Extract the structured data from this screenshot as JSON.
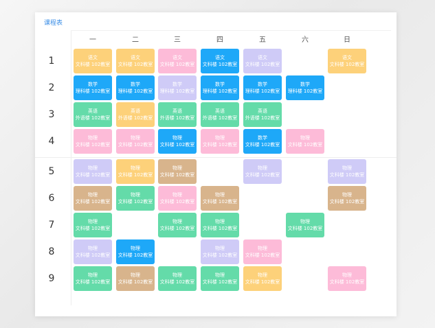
{
  "header": {
    "title": "课程表"
  },
  "days": [
    "一",
    "二",
    "三",
    "四",
    "五",
    "六",
    "日"
  ],
  "periods": [
    "1",
    "2",
    "3",
    "4",
    "5",
    "6",
    "7",
    "8",
    "9"
  ],
  "colors": {
    "orange": "#fdd17a",
    "pink": "#fdbbd8",
    "blue": "#1ea8f8",
    "lavender": "#cfcbf7",
    "green": "#64dba9",
    "tan": "#d8b48c"
  },
  "schedule": [
    [
      {
        "course": "语文",
        "room": "文科楼 102教室",
        "color": "orange"
      },
      {
        "course": "语文",
        "room": "文科楼 102教室",
        "color": "orange"
      },
      {
        "course": "语文",
        "room": "文科楼 102教室",
        "color": "pink"
      },
      {
        "course": "语文",
        "room": "文科楼 102教室",
        "color": "blue"
      },
      {
        "course": "语文",
        "room": "文科楼 102教室",
        "color": "lavender"
      },
      null,
      {
        "course": "语文",
        "room": "文科楼 102教室",
        "color": "orange"
      }
    ],
    [
      {
        "course": "数学",
        "room": "理科楼 102教室",
        "color": "blue"
      },
      {
        "course": "数学",
        "room": "理科楼 102教室",
        "color": "blue"
      },
      {
        "course": "数学",
        "room": "理科楼 102教室",
        "color": "lavender"
      },
      {
        "course": "数学",
        "room": "理科楼 102教室",
        "color": "blue"
      },
      {
        "course": "数学",
        "room": "理科楼 102教室",
        "color": "blue"
      },
      {
        "course": "数学",
        "room": "理科楼 102教室",
        "color": "blue"
      },
      null
    ],
    [
      {
        "course": "英语",
        "room": "外语楼 102教室",
        "color": "green"
      },
      {
        "course": "英语",
        "room": "外语楼 102教室",
        "color": "orange"
      },
      {
        "course": "英语",
        "room": "外语楼 102教室",
        "color": "green"
      },
      {
        "course": "英语",
        "room": "外语楼 102教室",
        "color": "green"
      },
      {
        "course": "英语",
        "room": "外语楼 102教室",
        "color": "green"
      },
      null,
      null
    ],
    [
      {
        "course": "物理",
        "room": "文科楼 102教室",
        "color": "pink"
      },
      {
        "course": "物理",
        "room": "文科楼 102教室",
        "color": "pink"
      },
      {
        "course": "物理",
        "room": "文科楼 102教室",
        "color": "blue"
      },
      {
        "course": "物理",
        "room": "文科楼 102教室",
        "color": "pink"
      },
      {
        "course": "数学",
        "room": "文科楼 102教室",
        "color": "blue"
      },
      {
        "course": "物理",
        "room": "文科楼 102教室",
        "color": "pink"
      },
      null
    ],
    [
      {
        "course": "物理",
        "room": "文科楼 102教室",
        "color": "lavender"
      },
      {
        "course": "物理",
        "room": "文科楼 102教室",
        "color": "orange"
      },
      {
        "course": "物理",
        "room": "文科楼 102教室",
        "color": "tan"
      },
      null,
      {
        "course": "物理",
        "room": "文科楼 102教室",
        "color": "lavender"
      },
      null,
      {
        "course": "物理",
        "room": "文科楼 102教室",
        "color": "lavender"
      }
    ],
    [
      {
        "course": "物理",
        "room": "文科楼 102教室",
        "color": "tan"
      },
      {
        "course": "物理",
        "room": "文科楼 102教室",
        "color": "green"
      },
      {
        "course": "物理",
        "room": "文科楼 102教室",
        "color": "pink"
      },
      {
        "course": "物理",
        "room": "文科楼 102教室",
        "color": "tan"
      },
      null,
      null,
      {
        "course": "物理",
        "room": "文科楼 102教室",
        "color": "tan"
      }
    ],
    [
      {
        "course": "物理",
        "room": "文科楼 102教室",
        "color": "green"
      },
      null,
      {
        "course": "物理",
        "room": "文科楼 102教室",
        "color": "green"
      },
      {
        "course": "物理",
        "room": "文科楼 102教室",
        "color": "green"
      },
      null,
      {
        "course": "物理",
        "room": "文科楼 102教室",
        "color": "green"
      },
      null
    ],
    [
      {
        "course": "物理",
        "room": "文科楼 102教室",
        "color": "lavender"
      },
      {
        "course": "物理",
        "room": "文科楼 102教室",
        "color": "blue"
      },
      null,
      {
        "course": "物理",
        "room": "文科楼 102教室",
        "color": "lavender"
      },
      {
        "course": "物理",
        "room": "文科楼 102教室",
        "color": "pink"
      },
      null,
      null
    ],
    [
      {
        "course": "物理",
        "room": "文科楼 102教室",
        "color": "green"
      },
      {
        "course": "物理",
        "room": "文科楼 102教室",
        "color": "tan"
      },
      {
        "course": "物理",
        "room": "文科楼 102教室",
        "color": "green"
      },
      {
        "course": "物理",
        "room": "文科楼 102教室",
        "color": "green"
      },
      {
        "course": "物理",
        "room": "文科楼 102教室",
        "color": "orange"
      },
      null,
      {
        "course": "物理",
        "room": "文科楼 102教室",
        "color": "pink"
      }
    ]
  ]
}
